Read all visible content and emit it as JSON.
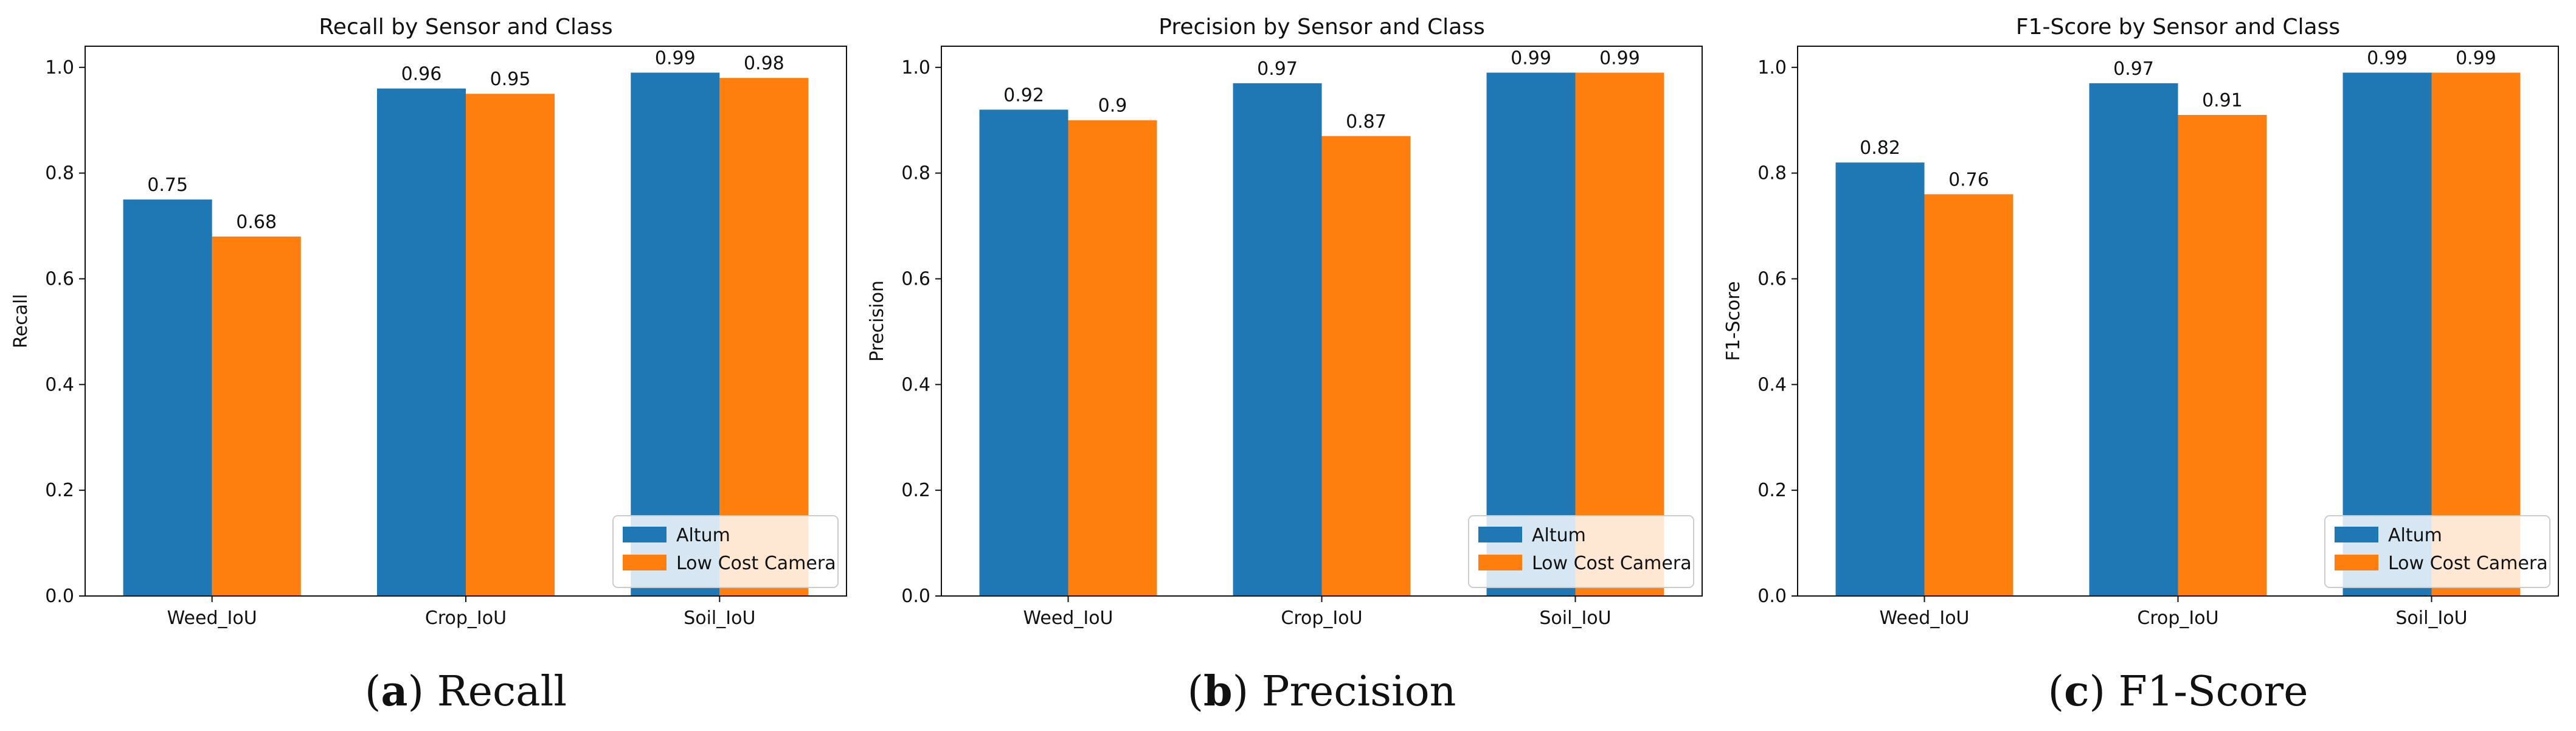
{
  "chart_data": [
    {
      "type": "bar",
      "title": "Recall by Sensor and Class",
      "xlabel": "",
      "ylabel": "Recall",
      "ylim": [
        0,
        1.04
      ],
      "yticks": [
        "0.0",
        "0.2",
        "0.4",
        "0.6",
        "0.8",
        "1.0"
      ],
      "categories": [
        "Weed_IoU",
        "Crop_IoU",
        "Soil_IoU"
      ],
      "series": [
        {
          "name": "Altum",
          "color": "#1f77b4",
          "values": [
            0.75,
            0.96,
            0.99
          ],
          "labels": [
            "0.75",
            "0.96",
            "0.99"
          ]
        },
        {
          "name": "Low Cost Camera",
          "color": "#ff7f0e",
          "values": [
            0.68,
            0.95,
            0.98
          ],
          "labels": [
            "0.68",
            "0.95",
            "0.98"
          ]
        }
      ],
      "legend": "lower-right",
      "caption": {
        "letter": "a",
        "text": "Recall"
      }
    },
    {
      "type": "bar",
      "title": "Precision by Sensor and Class",
      "xlabel": "",
      "ylabel": "Precision",
      "ylim": [
        0,
        1.04
      ],
      "yticks": [
        "0.0",
        "0.2",
        "0.4",
        "0.6",
        "0.8",
        "1.0"
      ],
      "categories": [
        "Weed_IoU",
        "Crop_IoU",
        "Soil_IoU"
      ],
      "series": [
        {
          "name": "Altum",
          "color": "#1f77b4",
          "values": [
            0.92,
            0.97,
            0.99
          ],
          "labels": [
            "0.92",
            "0.97",
            "0.99"
          ]
        },
        {
          "name": "Low Cost Camera",
          "color": "#ff7f0e",
          "values": [
            0.9,
            0.87,
            0.99
          ],
          "labels": [
            "0.9",
            "0.87",
            "0.99"
          ]
        }
      ],
      "legend": "lower-right",
      "caption": {
        "letter": "b",
        "text": "Precision"
      }
    },
    {
      "type": "bar",
      "title": "F1-Score by Sensor and Class",
      "xlabel": "",
      "ylabel": "F1-Score",
      "ylim": [
        0,
        1.04
      ],
      "yticks": [
        "0.0",
        "0.2",
        "0.4",
        "0.6",
        "0.8",
        "1.0"
      ],
      "categories": [
        "Weed_IoU",
        "Crop_IoU",
        "Soil_IoU"
      ],
      "series": [
        {
          "name": "Altum",
          "color": "#1f77b4",
          "values": [
            0.82,
            0.97,
            0.99
          ],
          "labels": [
            "0.82",
            "0.97",
            "0.99"
          ]
        },
        {
          "name": "Low Cost Camera",
          "color": "#ff7f0e",
          "values": [
            0.76,
            0.91,
            0.99
          ],
          "labels": [
            "0.76",
            "0.91",
            "0.99"
          ]
        }
      ],
      "legend": "lower-right",
      "caption": {
        "letter": "c",
        "text": "F1-Score"
      }
    }
  ]
}
